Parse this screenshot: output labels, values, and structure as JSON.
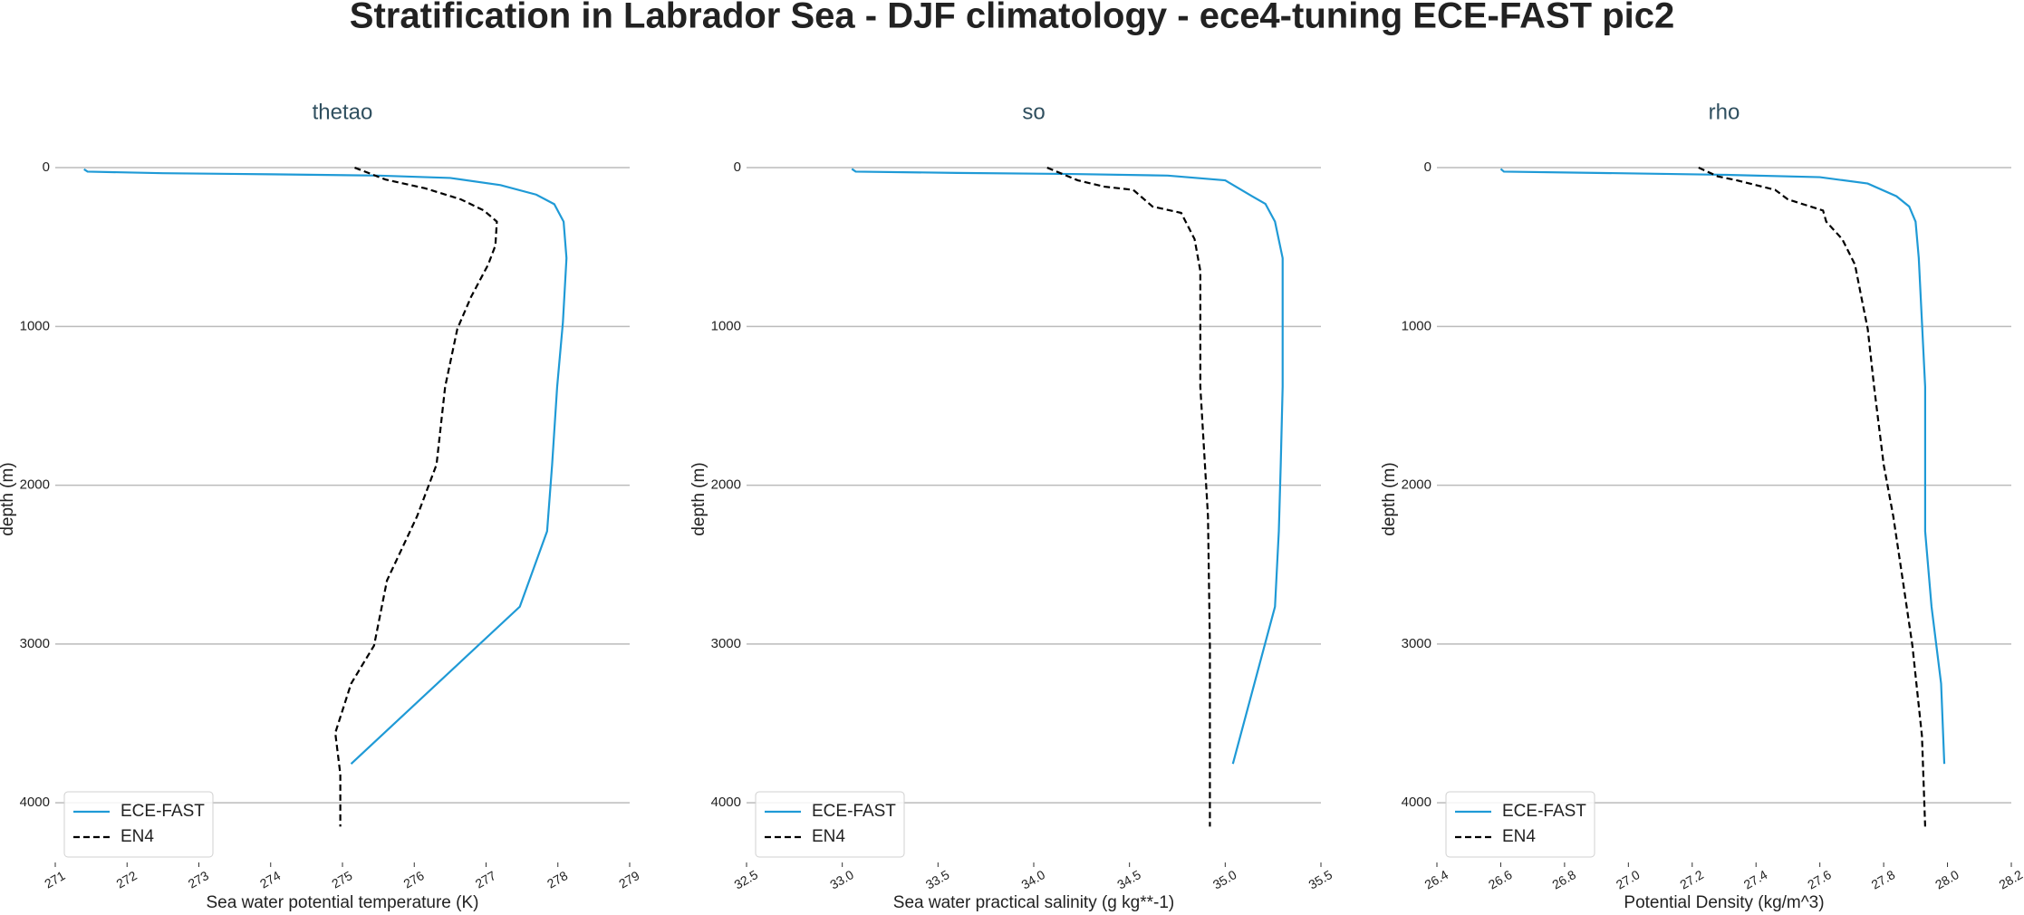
{
  "title": "Stratification in Labrador Sea - DJF climatology - ece4-tuning ECE-FAST pic2",
  "chart_data": [
    {
      "type": "line",
      "title": "thetao",
      "xlabel": "Sea water potential temperature (K)",
      "ylabel": "depth (m)",
      "xlim": [
        271,
        279
      ],
      "xticks": [
        271,
        272,
        273,
        274,
        275,
        276,
        277,
        278,
        279
      ],
      "ylim": [
        4376,
        -200
      ],
      "yticks": [
        0,
        1000,
        2000,
        3000,
        4000
      ],
      "grid": "y",
      "legend": "lower left",
      "series": [
        {
          "name": "ECE-FAST",
          "color": "#1f9ad6",
          "dash": "solid",
          "x": [
            271.4,
            271.45,
            272.5,
            274,
            275.5,
            276.5,
            277.2,
            277.7,
            277.95,
            278.08,
            278.12,
            278.07,
            277.99,
            277.92,
            277.85,
            277.47,
            275.12
          ],
          "y": [
            10,
            25,
            35,
            42,
            50,
            65,
            110,
            170,
            230,
            340,
            570,
            975,
            1380,
            1870,
            2290,
            2765,
            3755
          ]
        },
        {
          "name": "EN4",
          "color": "#000000",
          "dash": "dashed",
          "x": [
            275.17,
            275.6,
            276.15,
            276.65,
            276.97,
            277.15,
            277.13,
            277.03,
            276.79,
            276.6,
            276.43,
            276.31,
            276.04,
            275.62,
            275.44,
            275.12,
            274.9,
            274.97,
            274.97
          ],
          "y": [
            0,
            75,
            130,
            200,
            270,
            340,
            490,
            610,
            815,
            1015,
            1380,
            1870,
            2195,
            2600,
            3010,
            3250,
            3560,
            3820,
            4150
          ]
        }
      ]
    },
    {
      "type": "line",
      "title": "so",
      "xlabel": "Sea water practical salinity (g kg**-1)",
      "ylabel": "depth (m)",
      "xlim": [
        32.5,
        35.5
      ],
      "xticks": [
        32.5,
        {
          "value": 33,
          "label": "33.0"
        },
        33.5,
        {
          "value": 34,
          "label": "34.0"
        },
        34.5,
        {
          "value": 35,
          "label": "35.0"
        },
        35.5
      ],
      "ylim": [
        4376,
        -200
      ],
      "yticks": [
        0,
        1000,
        2000,
        3000,
        4000
      ],
      "grid": "y",
      "legend": "lower left",
      "series": [
        {
          "name": "ECE-FAST",
          "color": "#1f9ad6",
          "dash": "solid",
          "x": [
            33.05,
            33.07,
            33.6,
            34.2,
            34.7,
            35.0,
            35.14,
            35.21,
            35.26,
            35.3,
            35.3,
            35.3,
            35.29,
            35.28,
            35.26,
            35.04
          ],
          "y": [
            8,
            25,
            33,
            40,
            50,
            80,
            180,
            228,
            340,
            570,
            975,
            1380,
            1870,
            2290,
            2765,
            3755
          ]
        },
        {
          "name": "EN4",
          "color": "#000000",
          "dash": "dashed",
          "x": [
            34.07,
            34.15,
            34.23,
            34.37,
            34.52,
            34.62,
            34.77,
            34.84,
            34.87,
            34.87,
            34.91,
            34.92,
            34.92
          ],
          "y": [
            0,
            40,
            80,
            120,
            140,
            245,
            285,
            450,
            650,
            1380,
            2195,
            3010,
            4150
          ]
        }
      ]
    },
    {
      "type": "line",
      "title": "rho",
      "xlabel": "Potential Density (kg/m^3)",
      "ylabel": "depth (m)",
      "xlim": [
        26.4,
        28.2
      ],
      "xticks": [
        26.4,
        26.6,
        26.8,
        {
          "value": 27,
          "label": "27.0"
        },
        27.2,
        27.4,
        27.6,
        27.8,
        {
          "value": 28,
          "label": "28.0"
        },
        28.2
      ],
      "ylim": [
        4376,
        -200
      ],
      "yticks": [
        0,
        1000,
        2000,
        3000,
        4000
      ],
      "grid": "y",
      "legend": "lower left",
      "series": [
        {
          "name": "ECE-FAST",
          "color": "#1f9ad6",
          "dash": "solid",
          "x": [
            26.6,
            26.61,
            26.9,
            27.3,
            27.6,
            27.75,
            27.84,
            27.88,
            27.9,
            27.91,
            27.92,
            27.93,
            27.93,
            27.93,
            27.95,
            27.98,
            27.99
          ],
          "y": [
            8,
            25,
            33,
            45,
            60,
            100,
            180,
            245,
            340,
            570,
            975,
            1380,
            1870,
            2290,
            2765,
            3250,
            3755
          ]
        },
        {
          "name": "EN4",
          "color": "#000000",
          "dash": "dashed",
          "x": [
            27.22,
            27.28,
            27.34,
            27.46,
            27.5,
            27.61,
            27.62,
            27.67,
            27.71,
            27.73,
            27.75,
            27.77,
            27.8,
            27.83,
            27.86,
            27.89,
            27.92,
            27.93
          ],
          "y": [
            0,
            55,
            80,
            140,
            200,
            270,
            340,
            450,
            610,
            815,
            1015,
            1380,
            1870,
            2195,
            2600,
            3010,
            3580,
            4150
          ]
        }
      ]
    }
  ]
}
